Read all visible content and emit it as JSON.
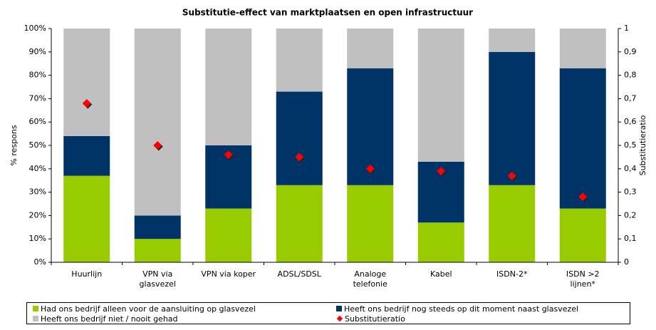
{
  "chart_data": {
    "type": "bar",
    "stacked": true,
    "title": "Substitutie-effect van marktplaatsen en open infrastructuur",
    "y_label": "% respons",
    "y2_label": "Substitutieratio",
    "categories": [
      "Huurlijn",
      "VPN via\nglasvezel",
      "VPN via koper",
      "ADSL/SDSL",
      "Analoge\ntelefonie",
      "Kabel",
      "ISDN-2*",
      "ISDN >2\nlijnen*"
    ],
    "series": [
      {
        "name": "Had ons bedrijf alleen voor de aansluiting op glasvezel",
        "color": "#99cc00",
        "values": [
          37,
          10,
          23,
          33,
          33,
          17,
          33,
          23
        ]
      },
      {
        "name": "Heeft ons bedrijf nog steeds op dit moment naast glasvezel",
        "color": "#003366",
        "values": [
          17,
          10,
          27,
          40,
          50,
          26,
          57,
          60
        ]
      },
      {
        "name": "Heeft ons bedrijf niet / nooit gehad",
        "color": "#c0c0c0",
        "values": [
          46,
          80,
          50,
          27,
          17,
          57,
          10,
          17
        ]
      },
      {
        "name": "Substitutieratio",
        "type": "scatter",
        "axis": "y2",
        "color": "#ff0000",
        "values": [
          0.68,
          0.5,
          0.46,
          0.45,
          0.4,
          0.39,
          0.37,
          0.28
        ]
      }
    ],
    "ylim": [
      0,
      100
    ],
    "yticks": [
      {
        "value": 0,
        "label": "0%"
      },
      {
        "value": 10,
        "label": "10%"
      },
      {
        "value": 20,
        "label": "20%"
      },
      {
        "value": 30,
        "label": "30%"
      },
      {
        "value": 40,
        "label": "40%"
      },
      {
        "value": 50,
        "label": "50%"
      },
      {
        "value": 60,
        "label": "60%"
      },
      {
        "value": 70,
        "label": "70%"
      },
      {
        "value": 80,
        "label": "80%"
      },
      {
        "value": 90,
        "label": "90%"
      },
      {
        "value": 100,
        "label": "100%"
      }
    ],
    "y2lim": [
      0,
      1
    ],
    "y2ticks": [
      0,
      {
        "value": 0.1,
        "label": "0,1"
      },
      {
        "value": 0.2,
        "label": "0,2"
      },
      {
        "value": 0.3,
        "label": "0,3"
      },
      {
        "value": 0.4,
        "label": "0,4"
      },
      {
        "value": 0.5,
        "label": "0,5"
      },
      {
        "value": 0.6,
        "label": "0,6"
      },
      {
        "value": 0.7,
        "label": "0,7"
      },
      {
        "value": 0.8,
        "label": "0,8"
      },
      {
        "value": 0.9,
        "label": "0,9"
      },
      1
    ]
  }
}
